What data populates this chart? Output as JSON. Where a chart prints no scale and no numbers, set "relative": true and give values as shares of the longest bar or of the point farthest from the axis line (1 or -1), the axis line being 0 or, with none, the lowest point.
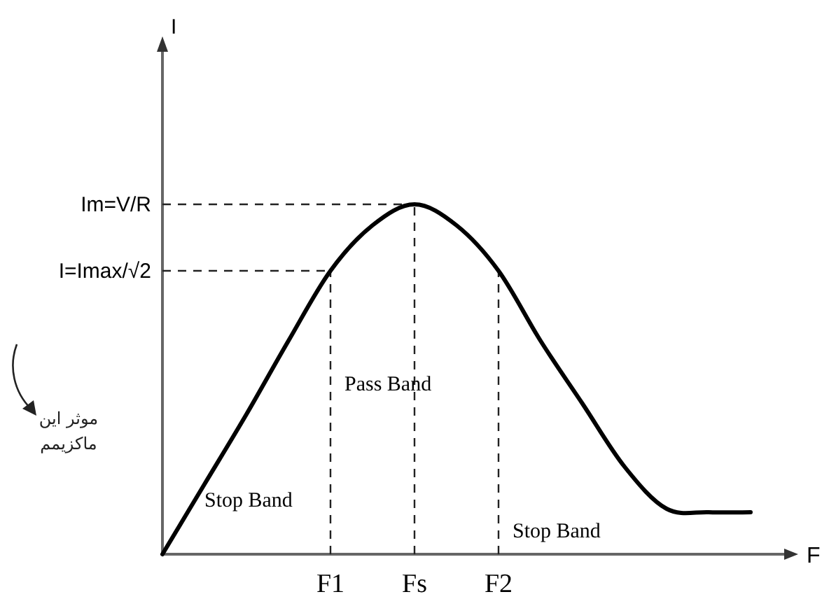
{
  "chart_data": {
    "type": "line",
    "relative": true,
    "xlabel": "F",
    "categories": [
      null,
      null,
      null,
      null,
      "F1",
      null,
      "Fs",
      null,
      "F2",
      null,
      null,
      null,
      null,
      null,
      null
    ],
    "series": [
      {
        "color": "#000000",
        "values": [
          0,
          0.2,
          0.4,
          0.61,
          0.81,
          0.94,
          1,
          0.94,
          0.81,
          0.61,
          0.43,
          0.25,
          0.13,
          0.12,
          0.12
        ]
      }
    ],
    "ref_lines": [
      {
        "axis": "y",
        "value": 1,
        "label": "Im=V/R",
        "line_style": "dashed"
      },
      {
        "axis": "y",
        "value": 0.81,
        "label": "I=Imax/√2",
        "line_style": "dashed"
      },
      {
        "axis": "x",
        "value": "F1",
        "line_style": "dashed"
      },
      {
        "axis": "x",
        "value": "Fs",
        "line_style": "dashed"
      },
      {
        "axis": "x",
        "value": "F2",
        "line_style": "dashed"
      }
    ],
    "annotations": [
      "I",
      "Stop Band",
      "Pass Band",
      "Stop Band",
      "موثر این ماکزیمم"
    ],
    "marker": "none",
    "line_style": "solid",
    "grid": false,
    "legend": false
  }
}
